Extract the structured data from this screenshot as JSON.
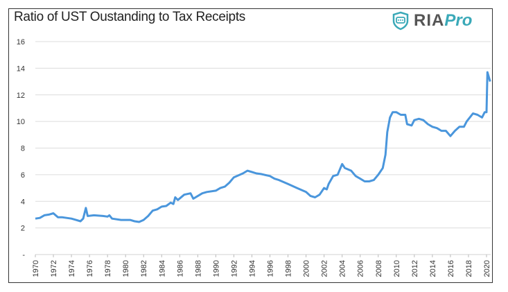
{
  "logo": {
    "text_main": "RIA",
    "text_accent": "Pro",
    "accent_color": "#3aa9b8",
    "icon": "shield-chat-icon"
  },
  "chart_data": {
    "type": "line",
    "title": "Ratio of UST Oustanding to Tax Receipts",
    "xlabel": "",
    "ylabel": "",
    "xlim": [
      1970,
      2020.6
    ],
    "ylim": [
      0,
      16
    ],
    "y_ticks": [
      0,
      2,
      4,
      6,
      8,
      10,
      12,
      14,
      16
    ],
    "y_tick_labels": [
      "-",
      "2",
      "4",
      "6",
      "8",
      "10",
      "12",
      "14",
      "16"
    ],
    "x_ticks": [
      1970,
      1972,
      1974,
      1976,
      1978,
      1980,
      1982,
      1984,
      1986,
      1988,
      1990,
      1992,
      1994,
      1996,
      1998,
      2000,
      2002,
      2004,
      2006,
      2008,
      2010,
      2012,
      2014,
      2016,
      2018,
      2020
    ],
    "grid": true,
    "legend": "none",
    "line_color": "#4a96dc",
    "series": [
      {
        "x": [
          1970,
          1970.5,
          1971,
          1971.5,
          1972,
          1972.5,
          1973,
          1974,
          1974.5,
          1975,
          1975.3,
          1975.6,
          1975.8,
          1976.5,
          1977.5,
          1978,
          1978.2,
          1978.5,
          1979.5,
          1980.5,
          1981,
          1981.5,
          1982,
          1982.5,
          1983,
          1983.5,
          1984,
          1984.5,
          1985,
          1985.3,
          1985.5,
          1985.8,
          1986.5,
          1987.2,
          1987.5,
          1988,
          1988.5,
          1989,
          1990,
          1990.5,
          1991,
          1991.5,
          1992,
          1993,
          1993.5,
          1994,
          1994.5,
          1995,
          1996,
          1996.5,
          1997,
          1998,
          1999,
          2000,
          2000.5,
          2001,
          2001.5,
          2002,
          2002.3,
          2002.5,
          2003,
          2003.5,
          2004,
          2004.3,
          2005,
          2005.5,
          2006,
          2006.5,
          2007,
          2007.5,
          2008,
          2008.5,
          2008.8,
          2009,
          2009.3,
          2009.6,
          2010,
          2010.5,
          2011,
          2011.2,
          2011.7,
          2012,
          2012.5,
          2013,
          2013.5,
          2014,
          2014.5,
          2015,
          2015.5,
          2016,
          2016.5,
          2017,
          2017.5,
          2017.8,
          2018.5,
          2019,
          2019.5,
          2019.8,
          2020,
          2020.1,
          2020.4
        ],
        "y": [
          2.7,
          2.75,
          2.95,
          3.0,
          3.1,
          2.8,
          2.8,
          2.7,
          2.6,
          2.5,
          2.7,
          3.5,
          2.9,
          2.95,
          2.9,
          2.85,
          2.95,
          2.7,
          2.6,
          2.6,
          2.5,
          2.45,
          2.6,
          2.9,
          3.3,
          3.4,
          3.6,
          3.65,
          3.9,
          3.8,
          4.3,
          4.1,
          4.5,
          4.6,
          4.2,
          4.4,
          4.6,
          4.7,
          4.8,
          5.0,
          5.1,
          5.4,
          5.8,
          6.1,
          6.3,
          6.2,
          6.1,
          6.05,
          5.9,
          5.7,
          5.6,
          5.3,
          5.0,
          4.7,
          4.4,
          4.3,
          4.5,
          5.0,
          4.9,
          5.3,
          5.9,
          6.0,
          6.8,
          6.5,
          6.3,
          5.9,
          5.7,
          5.5,
          5.5,
          5.6,
          6.0,
          6.5,
          7.5,
          9.2,
          10.3,
          10.7,
          10.7,
          10.5,
          10.5,
          9.8,
          9.7,
          10.1,
          10.2,
          10.1,
          9.8,
          9.6,
          9.5,
          9.3,
          9.3,
          8.9,
          9.3,
          9.6,
          9.6,
          10.0,
          10.6,
          10.5,
          10.3,
          10.7,
          10.7,
          13.7,
          13.0
        ]
      }
    ]
  }
}
